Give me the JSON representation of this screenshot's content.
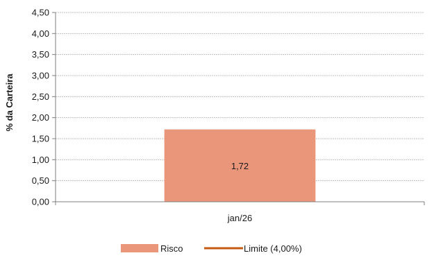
{
  "chart_data": {
    "type": "bar",
    "categories": [
      "jan/26"
    ],
    "series": [
      {
        "name": "Risco",
        "values": [
          1.72
        ],
        "color": "#E9967A"
      },
      {
        "name": "Limite (4,00%)",
        "type": "line",
        "values": [
          4.0
        ],
        "color": "#C55A11",
        "visible_on_plot": false
      }
    ],
    "ylabel": "% da Carteira",
    "xlabel": "",
    "ylim": [
      0,
      4.5
    ],
    "ytick_values": [
      0,
      0.5,
      1.0,
      1.5,
      2.0,
      2.5,
      3.0,
      3.5,
      4.0,
      4.5
    ],
    "ytick_labels": [
      "0,00",
      "0,50",
      "1,00",
      "1,50",
      "2,00",
      "2,50",
      "3,00",
      "3,50",
      "4,00",
      "4,50"
    ],
    "data_labels": [
      "1,72"
    ],
    "grid": true,
    "grid_color": "#bfbfbf",
    "legend_position": "bottom"
  }
}
